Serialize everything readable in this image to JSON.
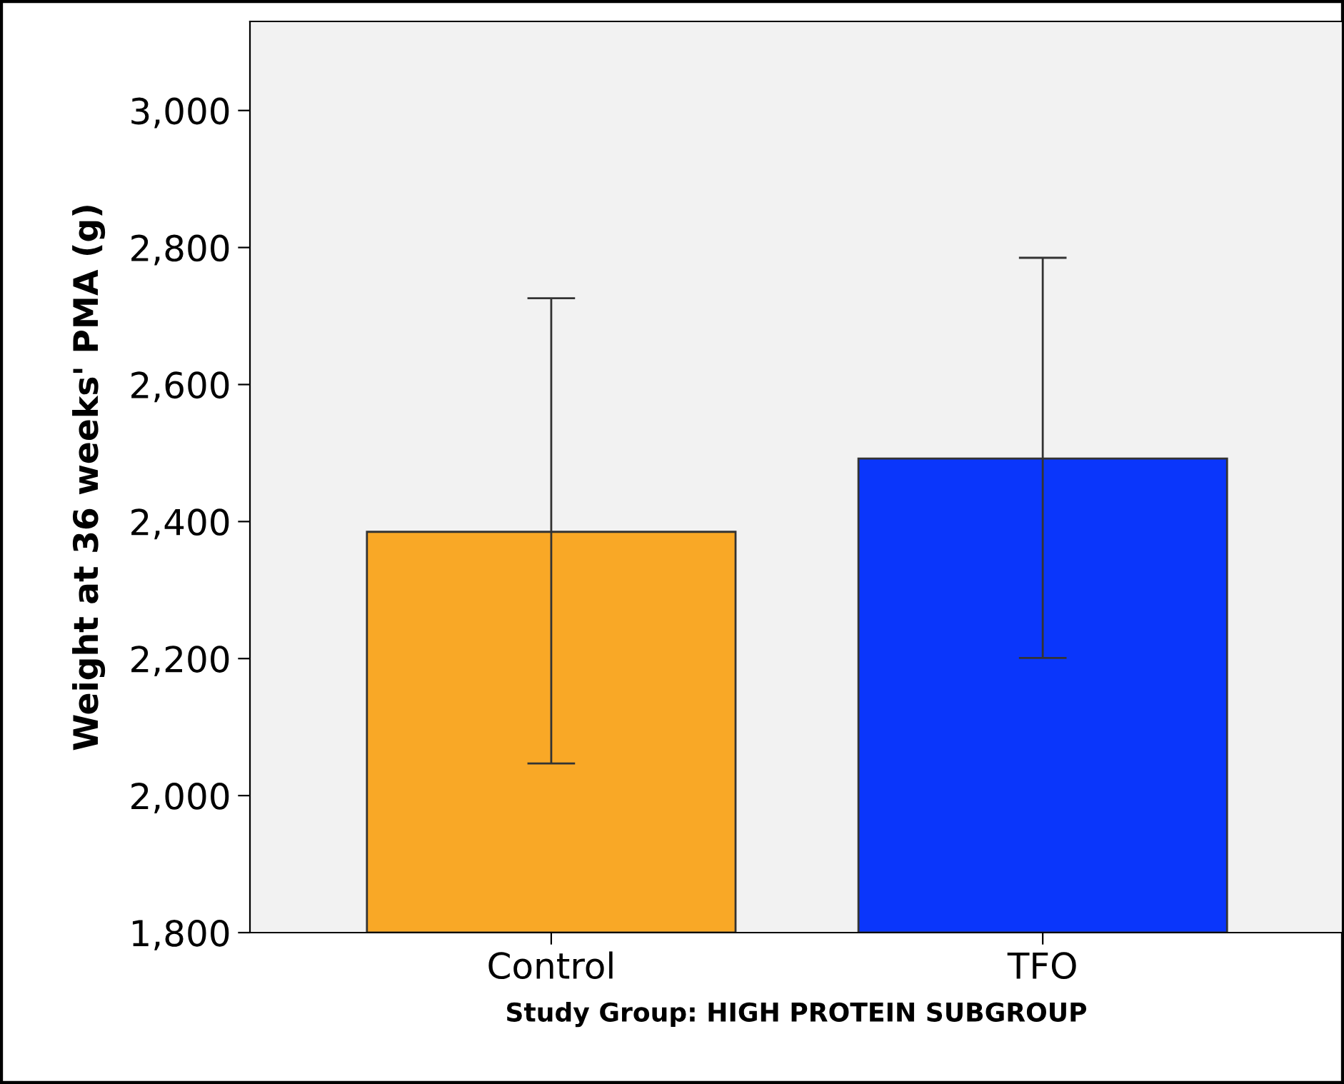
{
  "chart_data": {
    "type": "bar",
    "xlabel": "Study Group: HIGH PROTEIN SUBGROUP",
    "ylabel": "Weight at 36 weeks' PMA (g)",
    "categories": [
      "Control",
      "TFO"
    ],
    "values": [
      2385,
      2492
    ],
    "colors": [
      "#f9a826",
      "#0a36fb"
    ],
    "errors": [
      [
        2047,
        2726
      ],
      [
        2201,
        2785
      ]
    ],
    "ylim": [
      1800,
      3130
    ],
    "yticks": [
      {
        "value": 1800,
        "label": "1,800"
      },
      {
        "value": 2000,
        "label": "2,000"
      },
      {
        "value": 2200,
        "label": "2,200"
      },
      {
        "value": 2400,
        "label": "2,400"
      },
      {
        "value": 2600,
        "label": "2,600"
      },
      {
        "value": 2800,
        "label": "2,800"
      },
      {
        "value": 3000,
        "label": "3,000"
      }
    ],
    "grid": false
  }
}
